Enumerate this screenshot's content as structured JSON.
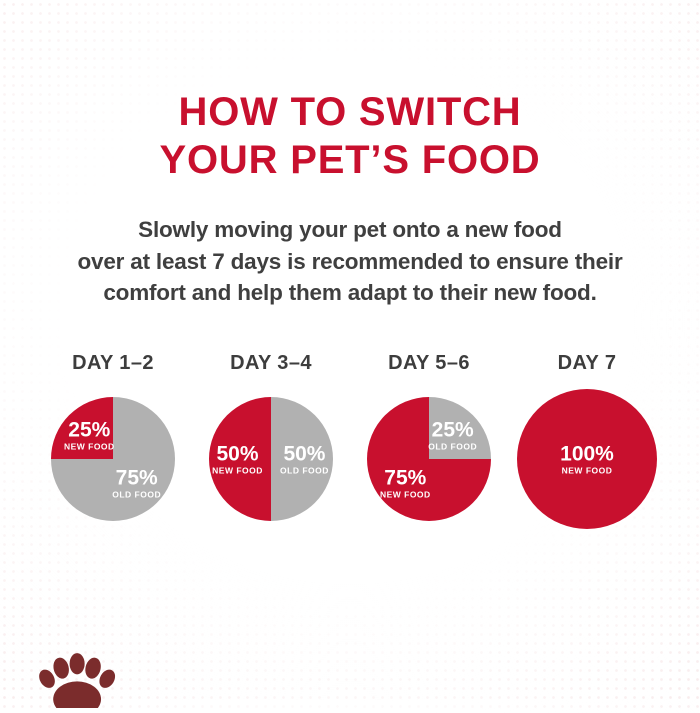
{
  "colors": {
    "accent_red": "#c8102e",
    "old_food_gray": "#b1b1b1",
    "heading_text": "#3d3d3d",
    "body_text": "#3f3f3f",
    "logo_maroon": "#7b2c2c",
    "background": "#ffffff"
  },
  "title": {
    "line1": "HOW TO SWITCH",
    "line2": "YOUR PET’S FOOD"
  },
  "intro": {
    "line1": "Slowly moving your pet onto a new food",
    "line2": "over at least 7 days is recommended to ensure their",
    "line3": "comfort and help them adapt to their new food."
  },
  "chart_data": [
    {
      "type": "pie",
      "title": "DAY 1–2",
      "unit": "percent",
      "slices": [
        {
          "label": "OLD FOOD",
          "value": 75,
          "pct_label": "75%",
          "color": "#b1b1b1"
        },
        {
          "label": "NEW FOOD",
          "value": 25,
          "pct_label": "25%",
          "color": "#c8102e"
        }
      ]
    },
    {
      "type": "pie",
      "title": "DAY 3–4",
      "unit": "percent",
      "slices": [
        {
          "label": "OLD FOOD",
          "value": 50,
          "pct_label": "50%",
          "color": "#b1b1b1"
        },
        {
          "label": "NEW FOOD",
          "value": 50,
          "pct_label": "50%",
          "color": "#c8102e"
        }
      ]
    },
    {
      "type": "pie",
      "title": "DAY 5–6",
      "unit": "percent",
      "slices": [
        {
          "label": "OLD FOOD",
          "value": 25,
          "pct_label": "25%",
          "color": "#b1b1b1"
        },
        {
          "label": "NEW FOOD",
          "value": 75,
          "pct_label": "75%",
          "color": "#c8102e"
        }
      ]
    },
    {
      "type": "pie",
      "title": "DAY 7",
      "unit": "percent",
      "slices": [
        {
          "label": "NEW FOOD",
          "value": 100,
          "pct_label": "100%",
          "color": "#c8102e"
        }
      ]
    }
  ],
  "footer": {
    "logo_icon": "royal-canin-paw-logo"
  }
}
